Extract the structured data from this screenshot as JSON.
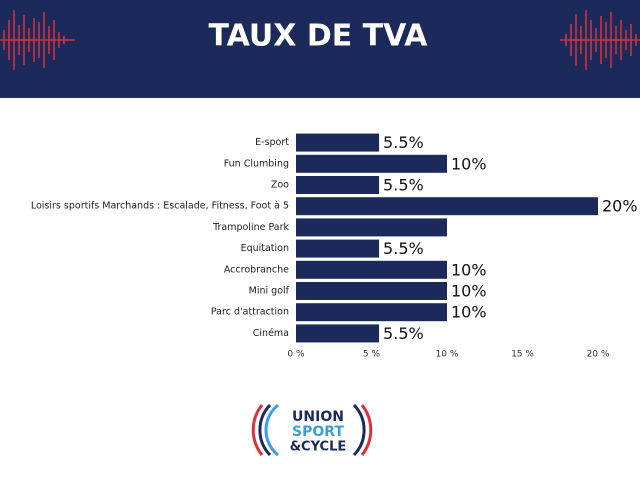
{
  "chart_data": {
    "type": "bar",
    "orientation": "horizontal",
    "title": "TAUX DE TVA",
    "categories": [
      "E-sport",
      "Fun Clumbing",
      "Zoo",
      "Loisirs sportifs Marchands : Escalade, Fitness, Foot à 5",
      "Trampoline Park",
      "Equitation",
      "Accrobranche",
      "Mini golf",
      "Parc d'attraction",
      "Cinéma"
    ],
    "values": [
      5.5,
      10,
      5.5,
      20,
      10,
      5.5,
      10,
      10,
      10,
      5.5
    ],
    "value_labels": [
      "5.5%",
      "10%",
      "5.5%",
      "20%",
      null,
      "5.5%",
      "10%",
      "10%",
      "10%",
      "5.5%"
    ],
    "color": "#1b2a5a",
    "xlim": [
      0,
      20
    ],
    "xticks": [
      {
        "value": 0,
        "label": "0 %"
      },
      {
        "value": 5,
        "label": "5 %"
      },
      {
        "value": 10,
        "label": "10 %"
      },
      {
        "value": 15,
        "label": "15 %"
      },
      {
        "value": 20,
        "label": "20 %"
      }
    ],
    "grid": false
  },
  "logo": {
    "line1": "UNION",
    "line2": "SPORT",
    "line3": "&CYCLE"
  }
}
